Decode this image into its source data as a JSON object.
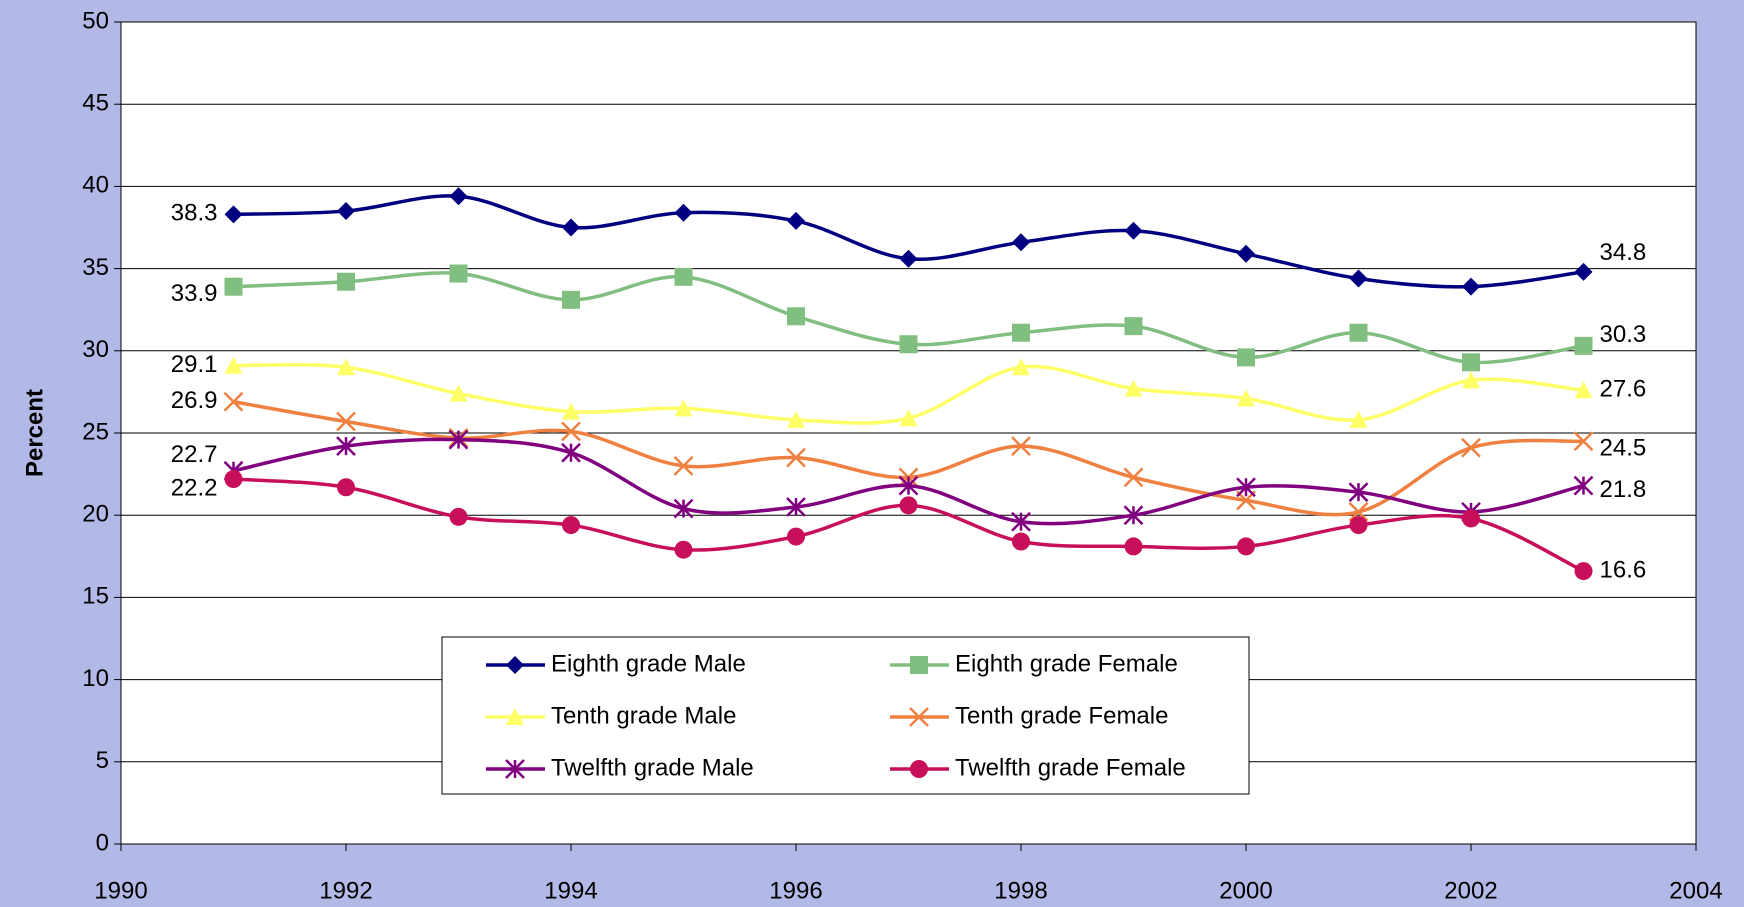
{
  "chart_data": {
    "type": "line",
    "ylabel": "Percent",
    "x": [
      1991,
      1992,
      1993,
      1994,
      1995,
      1996,
      1997,
      1998,
      1999,
      2000,
      2001,
      2002,
      2003
    ],
    "xlim": [
      1990,
      2004
    ],
    "xticks": [
      1990,
      1992,
      1994,
      1996,
      1998,
      2000,
      2002,
      2004
    ],
    "ylim": [
      0,
      50
    ],
    "yticks": [
      0,
      5,
      10,
      15,
      20,
      25,
      30,
      35,
      40,
      45,
      50
    ],
    "grid": true,
    "legend": "bottom-center",
    "series": [
      {
        "name": "Eighth grade Male",
        "color": "#000080",
        "marker": "diamond",
        "values": [
          38.3,
          38.5,
          39.4,
          37.5,
          38.4,
          37.9,
          35.6,
          36.6,
          37.3,
          35.9,
          34.4,
          33.9,
          34.8
        ]
      },
      {
        "name": "Eighth grade Female",
        "color": "#80bf80",
        "marker": "square",
        "values": [
          33.9,
          34.2,
          34.7,
          33.1,
          34.5,
          32.1,
          30.4,
          31.1,
          31.5,
          29.6,
          31.1,
          29.3,
          30.3
        ]
      },
      {
        "name": "Tenth grade Male",
        "color": "#ffff66",
        "marker": "triangle",
        "values": [
          29.1,
          29.0,
          27.4,
          26.3,
          26.5,
          25.8,
          25.9,
          29.0,
          27.7,
          27.1,
          25.8,
          28.2,
          27.6
        ]
      },
      {
        "name": "Tenth grade Female",
        "color": "#f08040",
        "marker": "x",
        "values": [
          26.9,
          25.7,
          24.7,
          25.1,
          23.0,
          23.5,
          22.3,
          24.2,
          22.3,
          20.9,
          20.2,
          24.1,
          24.5
        ]
      },
      {
        "name": "Twelfth grade Male",
        "color": "#800080",
        "marker": "star",
        "values": [
          22.7,
          24.2,
          24.6,
          23.8,
          20.4,
          20.5,
          21.8,
          19.6,
          20.0,
          21.7,
          21.4,
          20.2,
          21.8
        ]
      },
      {
        "name": "Twelfth grade Female",
        "color": "#c8105a",
        "marker": "circle",
        "values": [
          22.2,
          21.7,
          19.9,
          19.4,
          17.9,
          18.7,
          20.6,
          18.4,
          18.1,
          18.1,
          19.4,
          19.8,
          16.6
        ]
      }
    ]
  }
}
